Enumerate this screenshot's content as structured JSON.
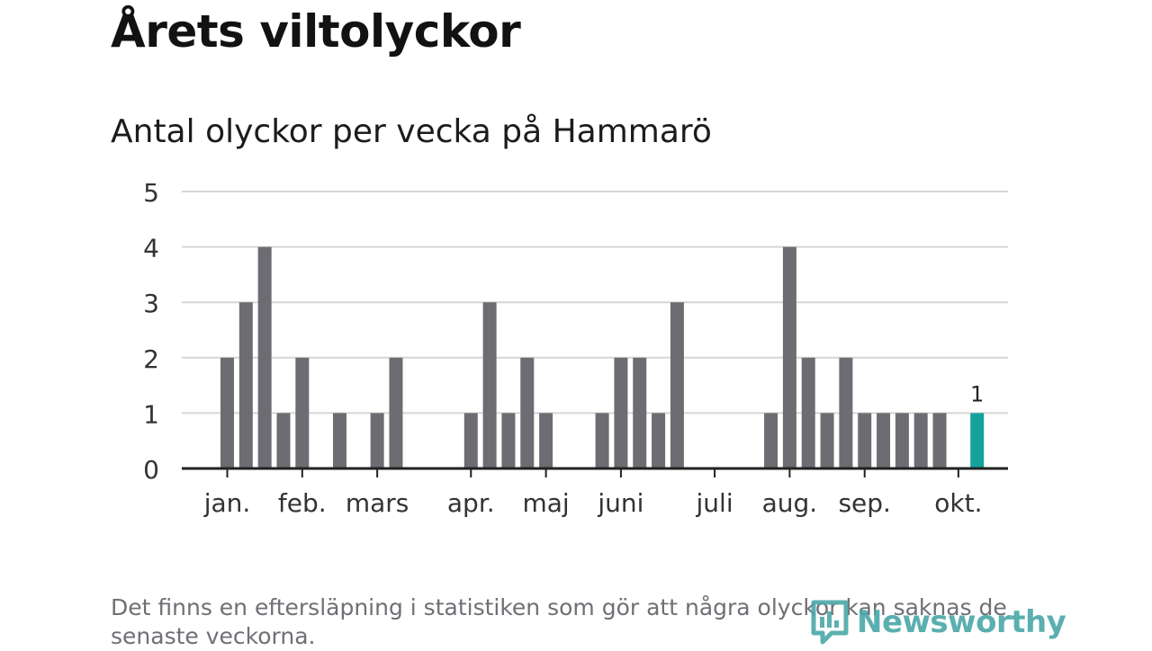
{
  "header": {
    "title": "Årets viltolyckor",
    "subtitle": "Antal olyckor per vecka på Hammarö"
  },
  "footnote": "Det finns en eftersläpning i statistiken som gör att några olyckor kan saknas de senaste veckorna.",
  "brand": {
    "name": "Newsworthy",
    "color": "#4aa7a7"
  },
  "colors": {
    "bar": "#6d6c72",
    "highlight": "#13a39a",
    "grid": "#d6d6d6",
    "axis": "#222222"
  },
  "chart_data": {
    "type": "bar",
    "title": "Antal olyckor per vecka på Hammarö",
    "xlabel": "",
    "ylabel": "",
    "ylim": [
      0,
      5
    ],
    "yticks": [
      0,
      1,
      2,
      3,
      4,
      5
    ],
    "grid": true,
    "weeks": [
      1,
      2,
      3,
      4,
      5,
      6,
      7,
      8,
      9,
      10,
      11,
      12,
      13,
      14,
      15,
      16,
      17,
      18,
      19,
      20,
      21,
      22,
      23,
      24,
      25,
      26,
      27,
      28,
      29,
      30,
      31,
      32,
      33,
      34,
      35,
      36,
      37,
      38,
      39,
      40,
      41
    ],
    "values": [
      2,
      3,
      4,
      1,
      2,
      0,
      1,
      0,
      1,
      2,
      0,
      0,
      0,
      1,
      3,
      1,
      2,
      1,
      0,
      0,
      1,
      2,
      2,
      1,
      3,
      0,
      0,
      0,
      0,
      1,
      4,
      2,
      1,
      2,
      1,
      1,
      1,
      1,
      1,
      0,
      1
    ],
    "highlight_index": 40,
    "highlight_label": "1",
    "month_ticks": [
      {
        "label": "jan.",
        "week": 1
      },
      {
        "label": "feb.",
        "week": 5
      },
      {
        "label": "mars",
        "week": 9
      },
      {
        "label": "apr.",
        "week": 14
      },
      {
        "label": "maj",
        "week": 18
      },
      {
        "label": "juni",
        "week": 22
      },
      {
        "label": "juli",
        "week": 27
      },
      {
        "label": "aug.",
        "week": 31
      },
      {
        "label": "sep.",
        "week": 35
      },
      {
        "label": "okt.",
        "week": 40
      }
    ]
  }
}
